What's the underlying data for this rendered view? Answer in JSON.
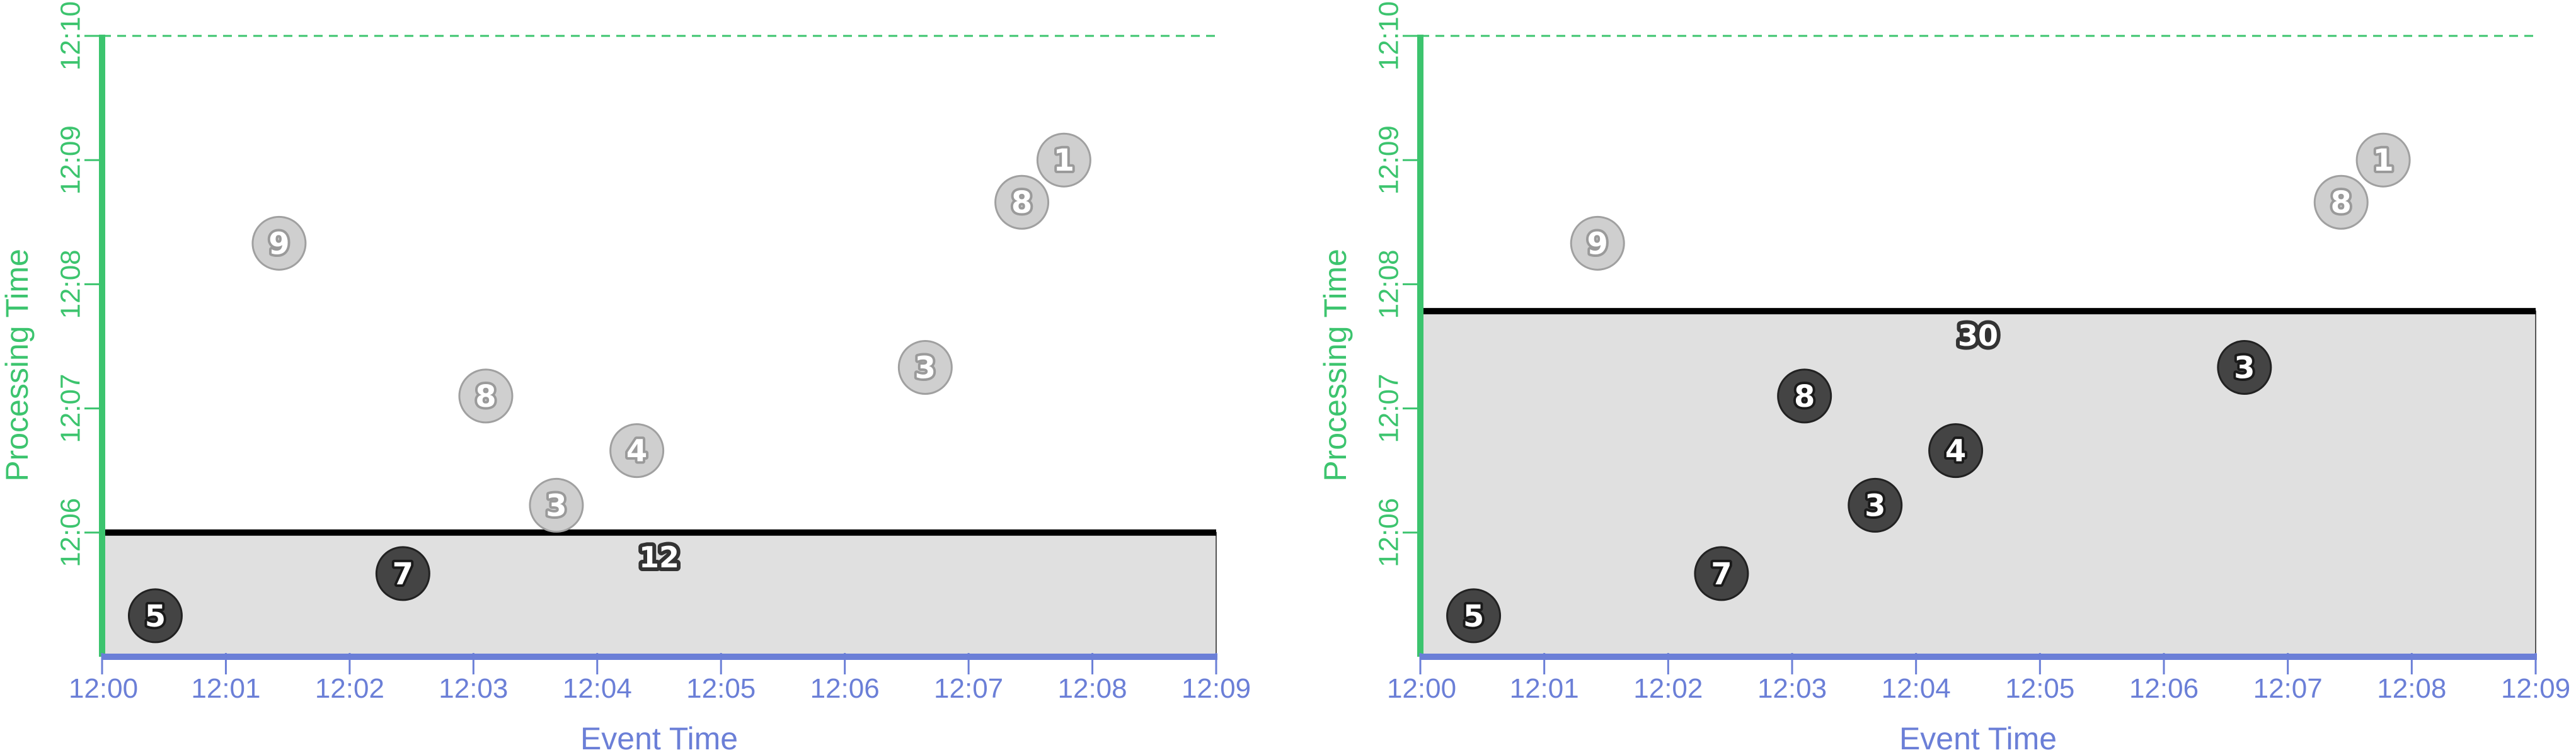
{
  "colors": {
    "event_axis": "#6b7fd7",
    "processing_axis": "#3cc46e",
    "window_fill": "#e0e0e0",
    "watermark_line": "#000000",
    "point_processed_fill": "#444444",
    "point_pending_fill": "#cfcfcf"
  },
  "chart_data": [
    {
      "type": "scatter",
      "xlabel": "Event Time",
      "ylabel": "Processing Time",
      "x_ticks": [
        "12:00",
        "12:01",
        "12:02",
        "12:03",
        "12:04",
        "12:05",
        "12:06",
        "12:07",
        "12:08",
        "12:09"
      ],
      "y_ticks": [
        "12:06",
        "12:07",
        "12:08",
        "12:09",
        "12:10"
      ],
      "x_range_minutes": [
        0,
        9
      ],
      "y_range_minutes": [
        5,
        10
      ],
      "processed_until": "12:06",
      "sum": "12",
      "points": [
        {
          "value": "5",
          "event_min": 0.43,
          "proc_min": 5.33,
          "processed": true
        },
        {
          "value": "7",
          "event_min": 2.43,
          "proc_min": 5.67,
          "processed": true
        },
        {
          "value": "9",
          "event_min": 1.43,
          "proc_min": 8.33,
          "processed": false
        },
        {
          "value": "8",
          "event_min": 3.1,
          "proc_min": 7.1,
          "processed": false
        },
        {
          "value": "3",
          "event_min": 3.67,
          "proc_min": 6.22,
          "processed": false
        },
        {
          "value": "4",
          "event_min": 4.32,
          "proc_min": 6.66,
          "processed": false
        },
        {
          "value": "3",
          "event_min": 6.65,
          "proc_min": 7.33,
          "processed": false
        },
        {
          "value": "8",
          "event_min": 7.43,
          "proc_min": 8.66,
          "processed": false
        },
        {
          "value": "1",
          "event_min": 7.77,
          "proc_min": 9.0,
          "processed": false
        }
      ]
    },
    {
      "type": "scatter",
      "xlabel": "Event Time",
      "ylabel": "Processing Time",
      "x_ticks": [
        "12:00",
        "12:01",
        "12:02",
        "12:03",
        "12:04",
        "12:05",
        "12:06",
        "12:07",
        "12:08",
        "12:09"
      ],
      "y_ticks": [
        "12:06",
        "12:07",
        "12:08",
        "12:09",
        "12:10"
      ],
      "x_range_minutes": [
        0,
        9
      ],
      "y_range_minutes": [
        5,
        10
      ],
      "processed_until": "12:07:47",
      "sum": "30",
      "points": [
        {
          "value": "5",
          "event_min": 0.43,
          "proc_min": 5.33,
          "processed": true
        },
        {
          "value": "7",
          "event_min": 2.43,
          "proc_min": 5.67,
          "processed": true
        },
        {
          "value": "9",
          "event_min": 1.43,
          "proc_min": 8.33,
          "processed": false
        },
        {
          "value": "8",
          "event_min": 3.1,
          "proc_min": 7.1,
          "processed": true
        },
        {
          "value": "3",
          "event_min": 3.67,
          "proc_min": 6.22,
          "processed": true
        },
        {
          "value": "4",
          "event_min": 4.32,
          "proc_min": 6.66,
          "processed": true
        },
        {
          "value": "3",
          "event_min": 6.65,
          "proc_min": 7.33,
          "processed": true
        },
        {
          "value": "8",
          "event_min": 7.43,
          "proc_min": 8.66,
          "processed": false
        },
        {
          "value": "1",
          "event_min": 7.77,
          "proc_min": 9.0,
          "processed": false
        }
      ]
    }
  ]
}
